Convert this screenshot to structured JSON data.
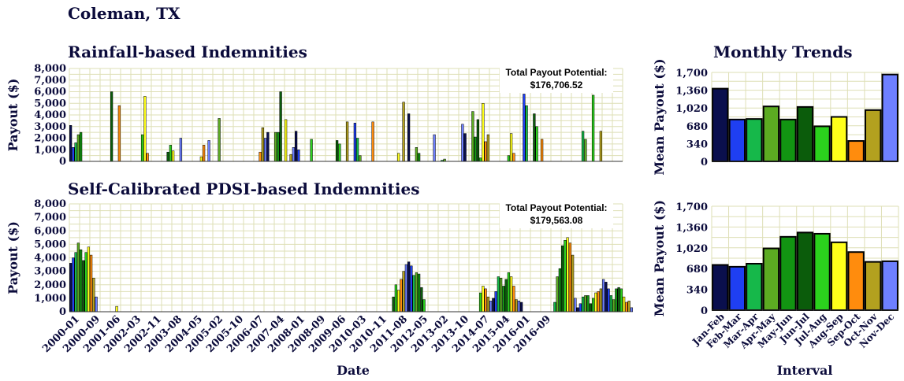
{
  "page": {
    "location_title": "Coleman, TX",
    "monthly_title": "Monthly Trends",
    "total_label": "Total Payout Potential:"
  },
  "colors": {
    "Jan-Feb": "#0a0f4d",
    "Feb-Mar": "#1f3ff2",
    "Mar-Apr": "#16b84a",
    "Apr-May": "#5cab22",
    "May-Jun": "#129412",
    "Jun-Jul": "#0b5c0b",
    "Jul-Aug": "#2bd11d",
    "Aug-Sep": "#ffff1a",
    "Sep-Oct": "#ff8c0d",
    "Oct-Nov": "#b3a11f",
    "Nov-Dec": "#6e80ff",
    "grid": "#dedfb6",
    "title": "#0b0b3b"
  },
  "chart_data": [
    {
      "type": "bar",
      "title": "Rainfall-based Indemnities",
      "ylabel": "Payout ($)",
      "xlabel": "",
      "total_payout": "$176,706.52",
      "ylim": [
        0,
        8000
      ],
      "yticks": [
        "0",
        "1,000",
        "2,000",
        "3,000",
        "4,000",
        "5,000",
        "6,000",
        "7,000",
        "8,000"
      ],
      "x_start": "2000-01",
      "x_end": "2017-01",
      "interval_order": [
        "Jan-Feb",
        "Feb-Mar",
        "Mar-Apr",
        "Apr-May",
        "May-Jun",
        "Jun-Jul",
        "Jul-Aug",
        "Aug-Sep",
        "Sep-Oct",
        "Oct-Nov",
        "Nov-Dec"
      ],
      "series": [
        {
          "year": 2000,
          "values": [
            3100,
            1200,
            1600,
            2300,
            2500,
            0,
            0,
            0,
            0,
            0,
            0
          ]
        },
        {
          "year": 2001,
          "values": [
            0,
            0,
            0,
            0,
            6000,
            0,
            0,
            4800,
            0,
            0,
            0
          ]
        },
        {
          "year": 2002,
          "values": [
            0,
            0,
            0,
            0,
            2300,
            5600,
            700,
            0,
            0,
            0,
            0
          ]
        },
        {
          "year": 2003,
          "values": [
            0,
            0,
            800,
            1400,
            900,
            0,
            0,
            2000,
            0,
            0,
            0
          ]
        },
        {
          "year": 2004,
          "values": [
            0,
            0,
            0,
            400,
            1400,
            0,
            1800,
            0,
            0,
            0,
            3700
          ]
        },
        {
          "year": 2005,
          "values": [
            0,
            0,
            0,
            0,
            0,
            0,
            0,
            0,
            0,
            0,
            0
          ]
        },
        {
          "year": 2006,
          "values": [
            0,
            0,
            800,
            2900,
            2000,
            2500,
            0,
            0,
            2500,
            2500,
            6000
          ]
        },
        {
          "year": 2007,
          "values": [
            3600,
            0,
            600,
            1200,
            2600,
            1000,
            0,
            0,
            0,
            0,
            1900
          ]
        },
        {
          "year": 2008,
          "values": [
            0,
            0,
            0,
            0,
            0,
            0,
            0,
            0,
            1800,
            1500,
            0
          ]
        },
        {
          "year": 2009,
          "values": [
            3400,
            0,
            0,
            3300,
            2000,
            500,
            0,
            0,
            0,
            0,
            3400
          ]
        },
        {
          "year": 2010,
          "values": [
            0,
            0,
            0,
            0,
            0,
            0,
            0,
            0,
            700,
            0,
            5100
          ]
        },
        {
          "year": 2011,
          "values": [
            4100,
            0,
            0,
            1200,
            700,
            0,
            0,
            0,
            0,
            0,
            2300
          ]
        },
        {
          "year": 2012,
          "values": [
            0,
            100,
            200,
            0,
            0,
            0,
            0,
            0,
            0,
            3200,
            2400
          ]
        },
        {
          "year": 2013,
          "values": [
            0,
            4300,
            2100,
            3600,
            300,
            5000,
            1700,
            2300,
            0,
            0,
            0
          ]
        },
        {
          "year": 2014,
          "values": [
            0,
            0,
            0,
            500,
            2400,
            700,
            0,
            0,
            0,
            5800,
            4800
          ]
        },
        {
          "year": 2015,
          "values": [
            0,
            4100,
            3000,
            0,
            1900,
            0,
            0,
            0,
            0,
            0,
            0
          ]
        },
        {
          "year": 2016,
          "values": [
            0,
            0,
            0,
            0,
            0,
            0,
            0,
            0,
            2600,
            1900,
            0
          ]
        },
        {
          "year": 2017,
          "values": [
            5700,
            0,
            0,
            2600,
            0,
            0,
            0,
            0,
            0,
            0,
            0
          ]
        }
      ]
    },
    {
      "type": "bar",
      "title": "Self-Calibrated PDSI-based Indemnities",
      "ylabel": "Payout ($)",
      "xlabel": "Date",
      "total_payout": "$179,563.08",
      "ylim": [
        0,
        8000
      ],
      "yticks": [
        "0",
        "1,000",
        "2,000",
        "3,000",
        "4,000",
        "5,000",
        "6,000",
        "7,000",
        "8,000"
      ],
      "x_tick_labels": [
        "2000-01",
        "2000-09",
        "2001-06",
        "2002-03",
        "2002-11",
        "2003-08",
        "2004-05",
        "2005-02",
        "2005-10",
        "2006-07",
        "2007-04",
        "2008-01",
        "2008-09",
        "2009-06",
        "2010-03",
        "2010-11",
        "2011-08",
        "2012-05",
        "2013-02",
        "2013-10",
        "2014-07",
        "2015-04",
        "2016-01",
        "2016-09"
      ],
      "clusters": [
        {
          "start": 0,
          "values": [
            3600,
            4000,
            4400,
            5100,
            4600,
            3800,
            4400,
            4800,
            4200,
            2500,
            1100
          ]
        },
        {
          "start": 18,
          "values": [
            400
          ]
        },
        {
          "start": 126,
          "values": [
            1100,
            2000,
            1600,
            2400,
            3000,
            3500,
            3700,
            3400,
            2700,
            2900,
            2800,
            1800,
            900
          ]
        },
        {
          "start": 160,
          "values": [
            1400,
            1900,
            1700,
            1100,
            800,
            1000,
            1500,
            2600,
            2500,
            1900,
            2400,
            2900,
            2600,
            1900,
            900,
            800,
            700
          ]
        },
        {
          "start": 189,
          "values": [
            700,
            2600,
            3200,
            4900,
            5300,
            5500,
            5100,
            4200,
            1000,
            300,
            600,
            1100,
            1200,
            1200,
            600,
            1000,
            1400,
            1500,
            1700,
            2400,
            2200,
            1700,
            1200,
            900,
            1700,
            1800,
            1700,
            1100,
            700,
            800,
            300
          ]
        }
      ]
    },
    {
      "type": "bar",
      "title": "",
      "ylabel": "Mean Payout ($)",
      "xlabel": "",
      "ylim": [
        0,
        1700
      ],
      "yticks": [
        "0",
        "340",
        "680",
        "1,020",
        "1,360",
        "1,700"
      ],
      "categories": [
        "Jan-Feb",
        "Feb-Mar",
        "Mar-Apr",
        "Apr-May",
        "May-Jun",
        "Jun-Jul",
        "Jul-Aug",
        "Aug-Sep",
        "Sep-Oct",
        "Oct-Nov",
        "Nov-Dec"
      ],
      "values": [
        1390,
        800,
        810,
        1050,
        800,
        1040,
        670,
        850,
        390,
        980,
        1660
      ]
    },
    {
      "type": "bar",
      "title": "",
      "ylabel": "Mean Payout ($)",
      "xlabel": "Interval",
      "ylim": [
        0,
        1700
      ],
      "yticks": [
        "0",
        "340",
        "680",
        "1,020",
        "1,360",
        "1,700"
      ],
      "categories": [
        "Jan-Feb",
        "Feb-Mar",
        "Mar-Apr",
        "Apr-May",
        "May-Jun",
        "Jun-Jul",
        "Jul-Aug",
        "Aug-Sep",
        "Sep-Oct",
        "Oct-Nov",
        "Nov-Dec"
      ],
      "values": [
        740,
        710,
        760,
        1010,
        1200,
        1270,
        1250,
        1110,
        950,
        790,
        800
      ]
    }
  ]
}
